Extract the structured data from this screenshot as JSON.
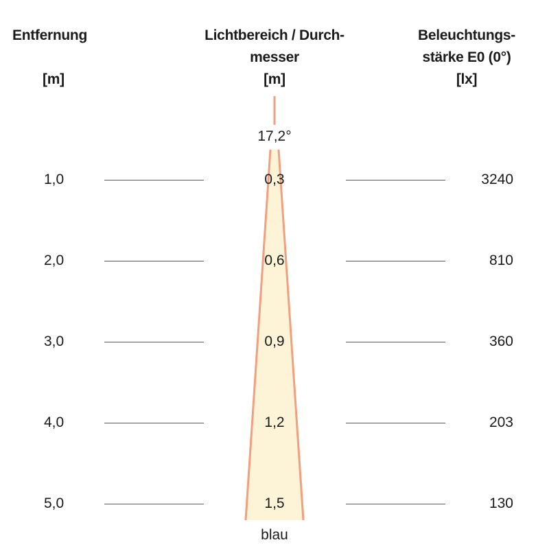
{
  "headers": {
    "distance": {
      "line1": "Entfernung",
      "unit": "[m]"
    },
    "beam": {
      "line1": "Lichtbereich / Durch-",
      "line2": "messer",
      "unit": "[m]"
    },
    "illuminance": {
      "line1": "Beleuchtungs-",
      "line2": "stärke E0 (0°)",
      "unit": "[lx]"
    }
  },
  "beam_angle": "17,2°",
  "color_label": "blau",
  "colors": {
    "cone_fill": "#fdf3d6",
    "cone_edge": "#f0a080",
    "rule": "#555555",
    "text": "#1a1a1a"
  },
  "rows": [
    {
      "distance": "1,0",
      "diameter": "0,3",
      "illuminance": "3240"
    },
    {
      "distance": "2,0",
      "diameter": "0,6",
      "illuminance": "810"
    },
    {
      "distance": "3,0",
      "diameter": "0,9",
      "illuminance": "360"
    },
    {
      "distance": "4,0",
      "diameter": "1,2",
      "illuminance": "203"
    },
    {
      "distance": "5,0",
      "diameter": "1,5",
      "illuminance": "130"
    }
  ]
}
